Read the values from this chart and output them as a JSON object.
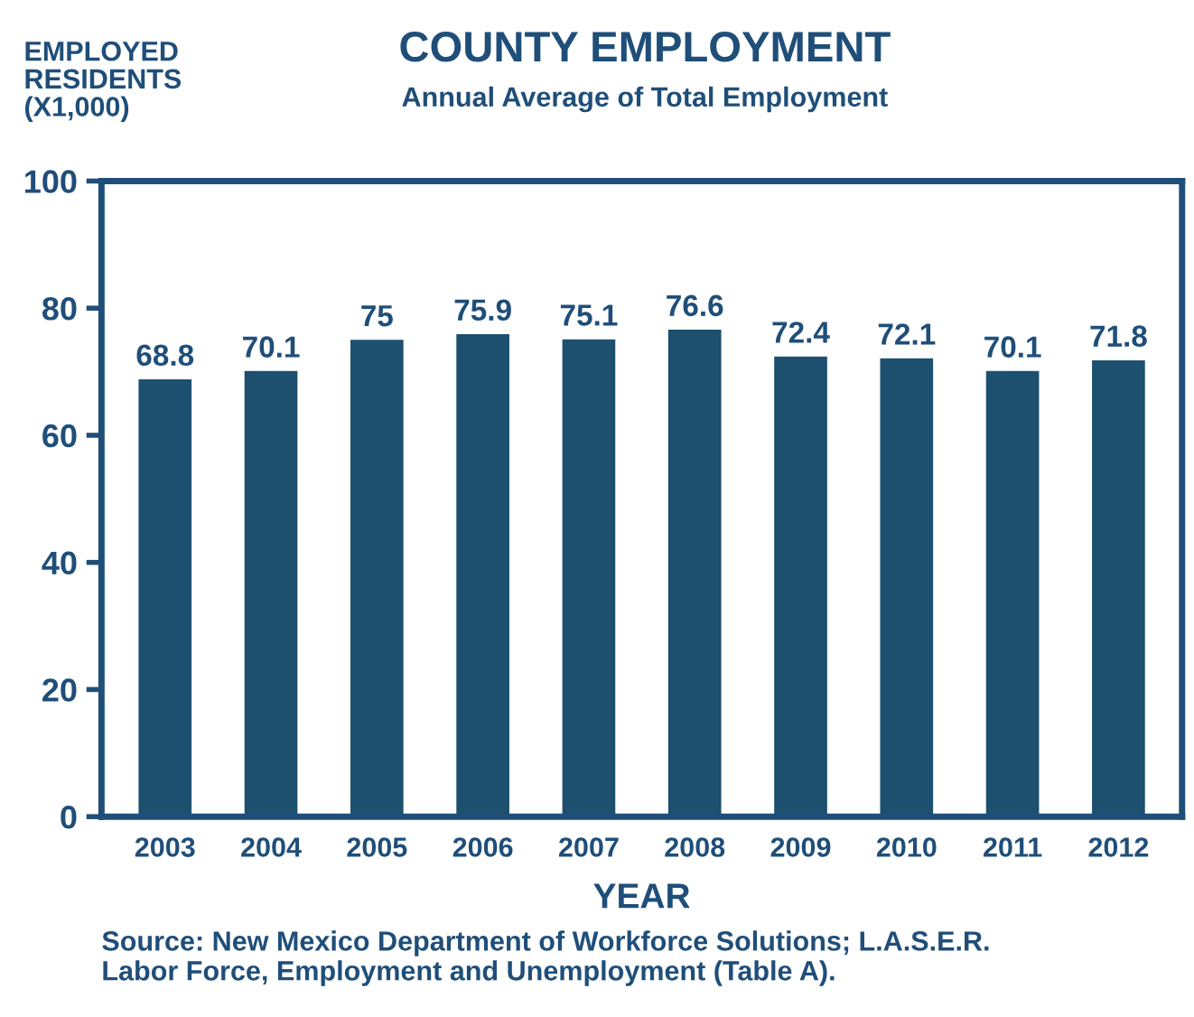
{
  "chart_data": {
    "type": "bar",
    "title": "COUNTY EMPLOYMENT",
    "subtitle": "Annual Average of Total Employment",
    "ylabel": "EMPLOYED\nRESIDENTS\n(X1,000)",
    "xlabel": "YEAR",
    "categories": [
      "2003",
      "2004",
      "2005",
      "2006",
      "2007",
      "2008",
      "2009",
      "2010",
      "2011",
      "2012"
    ],
    "values": [
      68.8,
      70.1,
      75,
      75.9,
      75.1,
      76.6,
      72.4,
      72.1,
      70.1,
      71.8
    ],
    "color": "#1d4f6e",
    "data_labels": true,
    "ylim": [
      0,
      100
    ],
    "yticks": [
      0,
      20,
      40,
      60,
      80,
      100
    ],
    "grid": false,
    "legend": false,
    "annotations": [
      "Source: New Mexico Department of Workforce Solutions; L.A.S.E.R.\nLabor Force, Employment and Unemployment (Table A)."
    ]
  }
}
